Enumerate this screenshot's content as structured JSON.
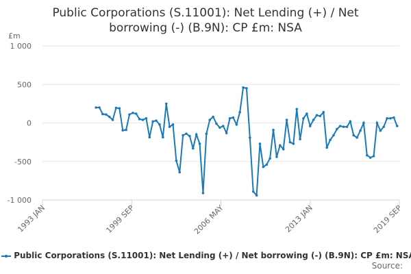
{
  "chart_data": {
    "type": "line",
    "title": "Public Corporations (S.11001): Net Lending (+) / Net borrowing (-) (B.9N): CP £m: NSA",
    "y_label": "£m",
    "source": "Source:",
    "xlim": [
      1993,
      2019.667
    ],
    "xticks": [
      {
        "value": 1993,
        "label": "1993 JAN"
      },
      {
        "value": 1999.667,
        "label": "1999 SEP"
      },
      {
        "value": 2006.333,
        "label": "2006 MAY"
      },
      {
        "value": 2013,
        "label": "2013 JAN"
      },
      {
        "value": 2019.667,
        "label": "2019 SEP"
      }
    ],
    "ylim": [
      -1000,
      1000
    ],
    "yticks": [
      {
        "value": -1000,
        "label": "-1 000"
      },
      -500,
      0,
      500,
      {
        "value": 1000,
        "label": "1 000"
      }
    ],
    "grid": true,
    "x": [
      1997,
      1997.25,
      1997.5,
      1997.75,
      1998,
      1998.25,
      1998.5,
      1998.75,
      1999,
      1999.25,
      1999.5,
      1999.75,
      2000,
      2000.25,
      2000.5,
      2000.75,
      2001,
      2001.25,
      2001.5,
      2001.75,
      2002,
      2002.25,
      2002.5,
      2002.75,
      2003,
      2003.25,
      2003.5,
      2003.75,
      2004,
      2004.25,
      2004.5,
      2004.75,
      2005,
      2005.25,
      2005.5,
      2005.75,
      2006,
      2006.25,
      2006.5,
      2006.75,
      2007,
      2007.25,
      2007.5,
      2007.75,
      2008,
      2008.25,
      2008.5,
      2008.75,
      2009,
      2009.25,
      2009.5,
      2009.75,
      2010,
      2010.25,
      2010.5,
      2010.75,
      2011,
      2011.25,
      2011.5,
      2011.75,
      2012,
      2012.25,
      2012.5,
      2012.75,
      2013,
      2013.25,
      2013.5,
      2013.75,
      2014,
      2014.25,
      2014.5,
      2014.75,
      2015,
      2015.25,
      2015.5,
      2015.75,
      2016,
      2016.25,
      2016.5,
      2016.75,
      2017,
      2017.25,
      2017.5,
      2017.75,
      2018,
      2018.25,
      2018.5,
      2018.75,
      2019,
      2019.25,
      2019.5
    ],
    "series": [
      {
        "name": "Public Corporations (S.11001): Net Lending (+) / Net borrowing (-) (B.9N): CP £m: NSA",
        "color": "#1a7ab8",
        "values": [
          200,
          200,
          115,
          110,
          80,
          40,
          195,
          190,
          -95,
          -90,
          110,
          130,
          120,
          50,
          40,
          60,
          -185,
          20,
          30,
          -20,
          -185,
          250,
          -50,
          -20,
          -490,
          -640,
          -160,
          -140,
          -170,
          -330,
          -150,
          -270,
          -910,
          -140,
          40,
          80,
          -10,
          -60,
          -40,
          -130,
          60,
          70,
          -20,
          140,
          460,
          450,
          -190,
          -890,
          -940,
          -270,
          -570,
          -540,
          -460,
          -90,
          -440,
          -290,
          -340,
          40,
          -250,
          -270,
          180,
          -210,
          60,
          120,
          -40,
          40,
          100,
          90,
          140,
          -320,
          -220,
          -160,
          -80,
          -40,
          -50,
          -50,
          20,
          -160,
          -190,
          -100,
          0,
          -420,
          -450,
          -430,
          0,
          -100,
          -50,
          60,
          60,
          70,
          -40
        ]
      }
    ]
  }
}
